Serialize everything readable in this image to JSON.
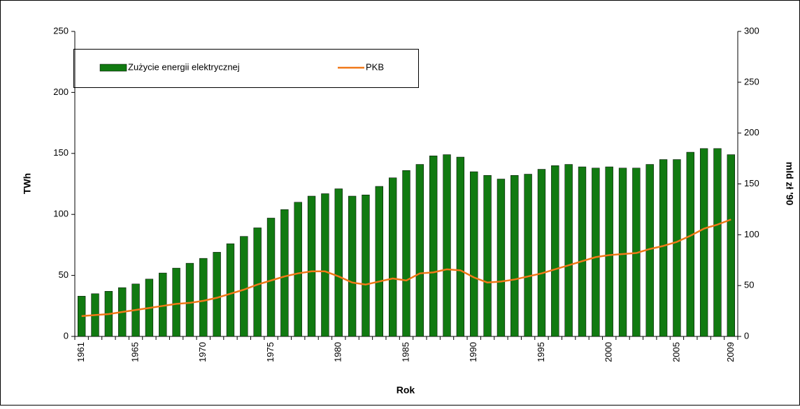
{
  "chart_data": {
    "type": "bar",
    "x_label": "Rok",
    "y_label": "TWh",
    "y2_label": "mld zł '90",
    "categories": [
      "1961",
      null,
      null,
      null,
      "1965",
      null,
      null,
      null,
      null,
      "1970",
      null,
      null,
      null,
      null,
      "1975",
      null,
      null,
      null,
      null,
      "1980",
      null,
      null,
      null,
      null,
      "1985",
      null,
      null,
      null,
      null,
      "1990",
      null,
      null,
      null,
      null,
      "1995",
      null,
      null,
      null,
      null,
      "2000",
      null,
      null,
      null,
      null,
      "2005",
      null,
      null,
      null,
      "2009"
    ],
    "series": [
      {
        "name": "Zużycie energii elektrycznej",
        "color": "#117a11",
        "type": "bar",
        "values": [
          33,
          35,
          37,
          40,
          43,
          47,
          52,
          56,
          60,
          64,
          69,
          76,
          82,
          89,
          97,
          104,
          110,
          115,
          117,
          121,
          115,
          116,
          123,
          130,
          136,
          141,
          148,
          149,
          147,
          135,
          132,
          129,
          132,
          133,
          137,
          140,
          141,
          139,
          138,
          139,
          138,
          138,
          141,
          145,
          145,
          151,
          154,
          154,
          149
        ]
      },
      {
        "name": "PKB",
        "color": "#f07818",
        "type": "line",
        "axis": "y2",
        "values": [
          20,
          21,
          22,
          24,
          26,
          28,
          30,
          32,
          33,
          35,
          38,
          42,
          46,
          51,
          55,
          59,
          62,
          64,
          64,
          59,
          53,
          51,
          54,
          57,
          55,
          62,
          63,
          66,
          65,
          58,
          53,
          54,
          56,
          59,
          62,
          66,
          70,
          74,
          78,
          80,
          81,
          82,
          86,
          89,
          93,
          99,
          106,
          110,
          115
        ]
      }
    ],
    "ylim": [
      0,
      250
    ],
    "yticks": [
      0,
      50,
      100,
      150,
      200,
      250
    ],
    "y2lim": [
      0,
      300
    ],
    "y2ticks": [
      0,
      50,
      100,
      150,
      200,
      250,
      300
    ],
    "legend": "top-left"
  }
}
